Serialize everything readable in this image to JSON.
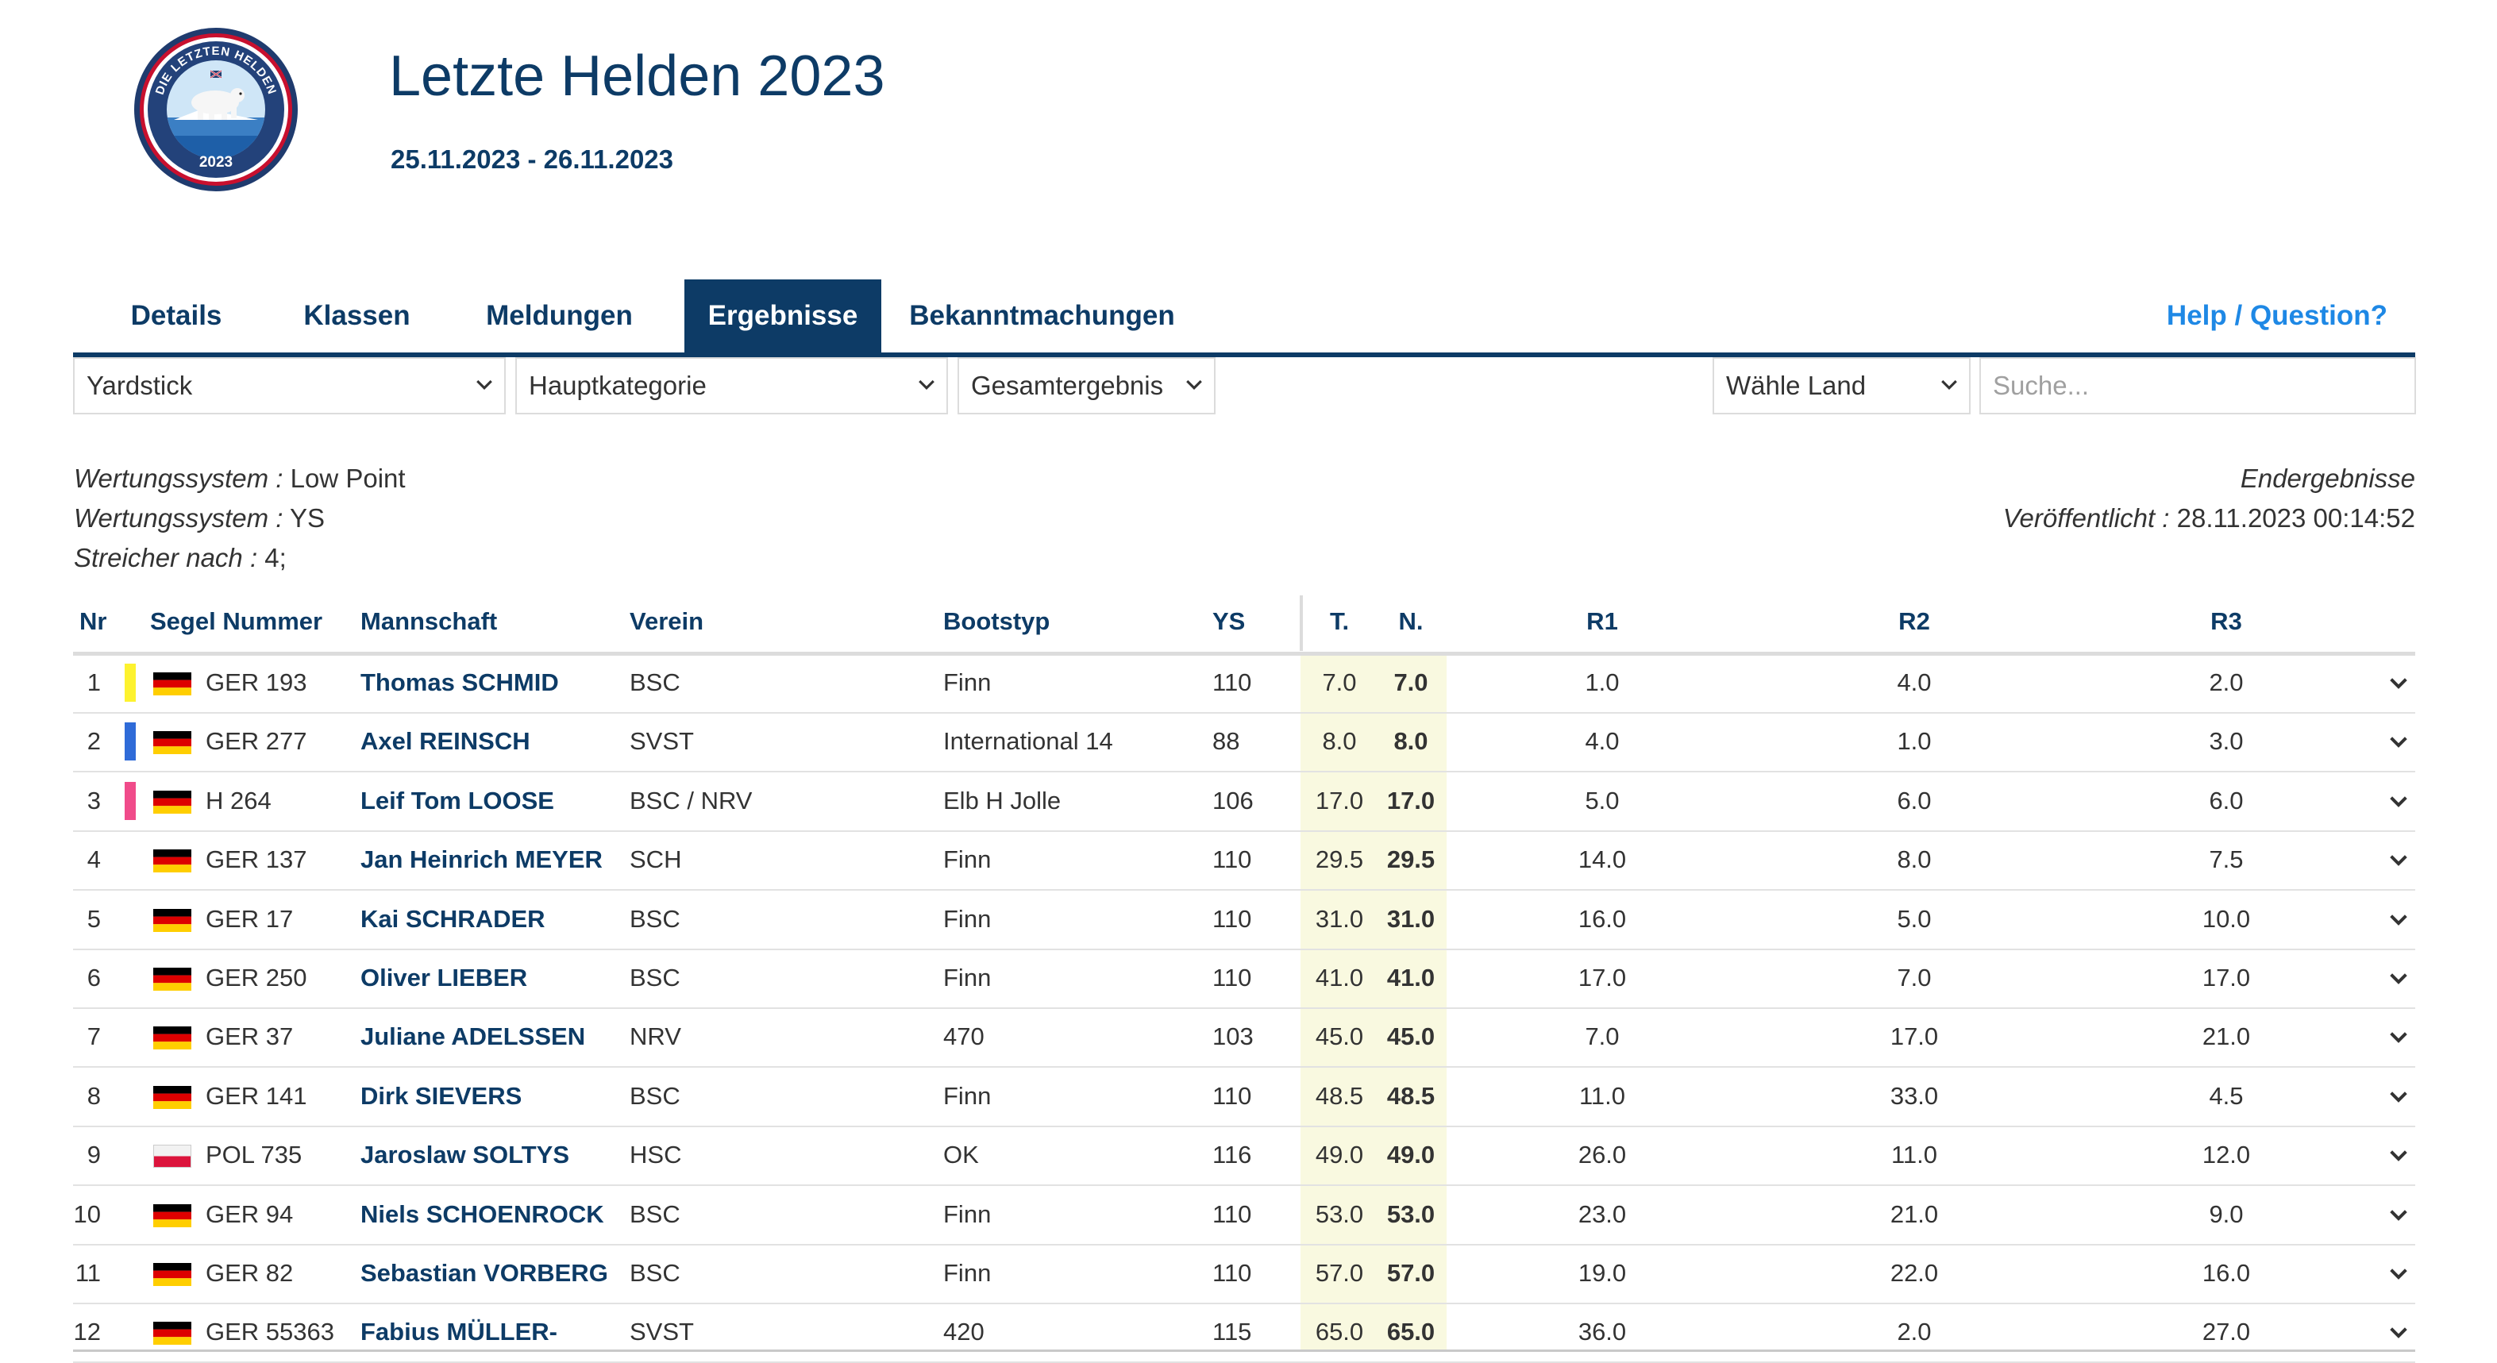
{
  "event": {
    "title": "Letzte Helden 2023",
    "dates": "25.11.2023 - 26.11.2023",
    "logo": {
      "ring_text": "DIE LETZTEN HELDEN",
      "year": "2023",
      "icon": "polar-bear-logo-icon"
    }
  },
  "nav": {
    "tabs": [
      {
        "label": "Details",
        "active": false
      },
      {
        "label": "Klassen",
        "active": false
      },
      {
        "label": "Meldungen",
        "active": false
      },
      {
        "label": "Ergebnisse",
        "active": true
      },
      {
        "label": "Bekanntmachungen",
        "active": false
      }
    ],
    "help": "Help / Question?"
  },
  "filters": {
    "scoring": "Yardstick",
    "category": "Hauptkategorie",
    "result_type": "Gesamtergebnis",
    "country": "Wähle Land",
    "search_placeholder": "Suche..."
  },
  "info": {
    "left": [
      {
        "label": "Wertungssystem :",
        "value": " Low Point"
      },
      {
        "label": "Wertungssystem :",
        "value": " YS"
      },
      {
        "label": "Streicher nach :",
        "value": " 4;"
      }
    ],
    "right": {
      "status": "Endergebnisse",
      "published_label": "Veröffentlicht :",
      "published_value": " 28.11.2023 00:14:52"
    }
  },
  "table": {
    "headers": {
      "nr": "Nr",
      "sail": "Segel Nummer",
      "crew": "Mannschaft",
      "club": "Verein",
      "boat": "Bootstyp",
      "ys": "YS",
      "total": "T.",
      "net": "N.",
      "r1": "R1",
      "r2": "R2",
      "r3": "R3"
    },
    "colors": {
      "gold": "#fdf22f",
      "silver": "#2f6bd8",
      "bronze": "#f04b8a",
      "primary": "#0d3b66",
      "highlight": "#f9f9e0"
    },
    "rows": [
      {
        "nr": "1",
        "medal": "#fdf22f",
        "flag": "germany-flag-icon",
        "sail": "GER 193",
        "crew": "Thomas SCHMID",
        "club": "BSC",
        "boat": "Finn",
        "ys": "110",
        "total": "7.0",
        "net": "7.0",
        "r1": "1.0",
        "r2": "4.0",
        "r3": "2.0"
      },
      {
        "nr": "2",
        "medal": "#2f6bd8",
        "flag": "germany-flag-icon",
        "sail": "GER 277",
        "crew": "Axel REINSCH",
        "club": "SVST",
        "boat": "International 14",
        "ys": "88",
        "total": "8.0",
        "net": "8.0",
        "r1": "4.0",
        "r2": "1.0",
        "r3": "3.0"
      },
      {
        "nr": "3",
        "medal": "#f04b8a",
        "flag": "germany-flag-icon",
        "sail": "H 264",
        "crew": "Leif Tom LOOSE",
        "club": "BSC / NRV",
        "boat": "Elb H Jolle",
        "ys": "106",
        "total": "17.0",
        "net": "17.0",
        "r1": "5.0",
        "r2": "6.0",
        "r3": "6.0"
      },
      {
        "nr": "4",
        "medal": "",
        "flag": "germany-flag-icon",
        "sail": "GER 137",
        "crew": "Jan Heinrich MEYER",
        "club": "SCH",
        "boat": "Finn",
        "ys": "110",
        "total": "29.5",
        "net": "29.5",
        "r1": "14.0",
        "r2": "8.0",
        "r3": "7.5"
      },
      {
        "nr": "5",
        "medal": "",
        "flag": "germany-flag-icon",
        "sail": "GER 17",
        "crew": "Kai SCHRADER",
        "club": "BSC",
        "boat": "Finn",
        "ys": "110",
        "total": "31.0",
        "net": "31.0",
        "r1": "16.0",
        "r2": "5.0",
        "r3": "10.0"
      },
      {
        "nr": "6",
        "medal": "",
        "flag": "germany-flag-icon",
        "sail": "GER 250",
        "crew": "Oliver LIEBER",
        "club": "BSC",
        "boat": "Finn",
        "ys": "110",
        "total": "41.0",
        "net": "41.0",
        "r1": "17.0",
        "r2": "7.0",
        "r3": "17.0"
      },
      {
        "nr": "7",
        "medal": "",
        "flag": "germany-flag-icon",
        "sail": "GER 37",
        "crew": "Juliane ADELSSEN",
        "club": "NRV",
        "boat": "470",
        "ys": "103",
        "total": "45.0",
        "net": "45.0",
        "r1": "7.0",
        "r2": "17.0",
        "r3": "21.0"
      },
      {
        "nr": "8",
        "medal": "",
        "flag": "germany-flag-icon",
        "sail": "GER 141",
        "crew": "Dirk SIEVERS",
        "club": "BSC",
        "boat": "Finn",
        "ys": "110",
        "total": "48.5",
        "net": "48.5",
        "r1": "11.0",
        "r2": "33.0",
        "r3": "4.5"
      },
      {
        "nr": "9",
        "medal": "",
        "flag": "poland-flag-icon",
        "sail": "POL 735",
        "crew": "Jaroslaw SOLTYS",
        "club": "HSC",
        "boat": "OK",
        "ys": "116",
        "total": "49.0",
        "net": "49.0",
        "r1": "26.0",
        "r2": "11.0",
        "r3": "12.0"
      },
      {
        "nr": "10",
        "medal": "",
        "flag": "germany-flag-icon",
        "sail": "GER 94",
        "crew": "Niels SCHOENROCK",
        "club": "BSC",
        "boat": "Finn",
        "ys": "110",
        "total": "53.0",
        "net": "53.0",
        "r1": "23.0",
        "r2": "21.0",
        "r3": "9.0"
      },
      {
        "nr": "11",
        "medal": "",
        "flag": "germany-flag-icon",
        "sail": "GER 82",
        "crew": "Sebastian VORBERG",
        "club": "BSC",
        "boat": "Finn",
        "ys": "110",
        "total": "57.0",
        "net": "57.0",
        "r1": "19.0",
        "r2": "22.0",
        "r3": "16.0"
      },
      {
        "nr": "12",
        "medal": "",
        "flag": "germany-flag-icon",
        "sail": "GER 55363",
        "crew": "Fabius MÜLLER-",
        "club": "SVST",
        "boat": "420",
        "ys": "115",
        "total": "65.0",
        "net": "65.0",
        "r1": "36.0",
        "r2": "2.0",
        "r3": "27.0"
      }
    ]
  }
}
